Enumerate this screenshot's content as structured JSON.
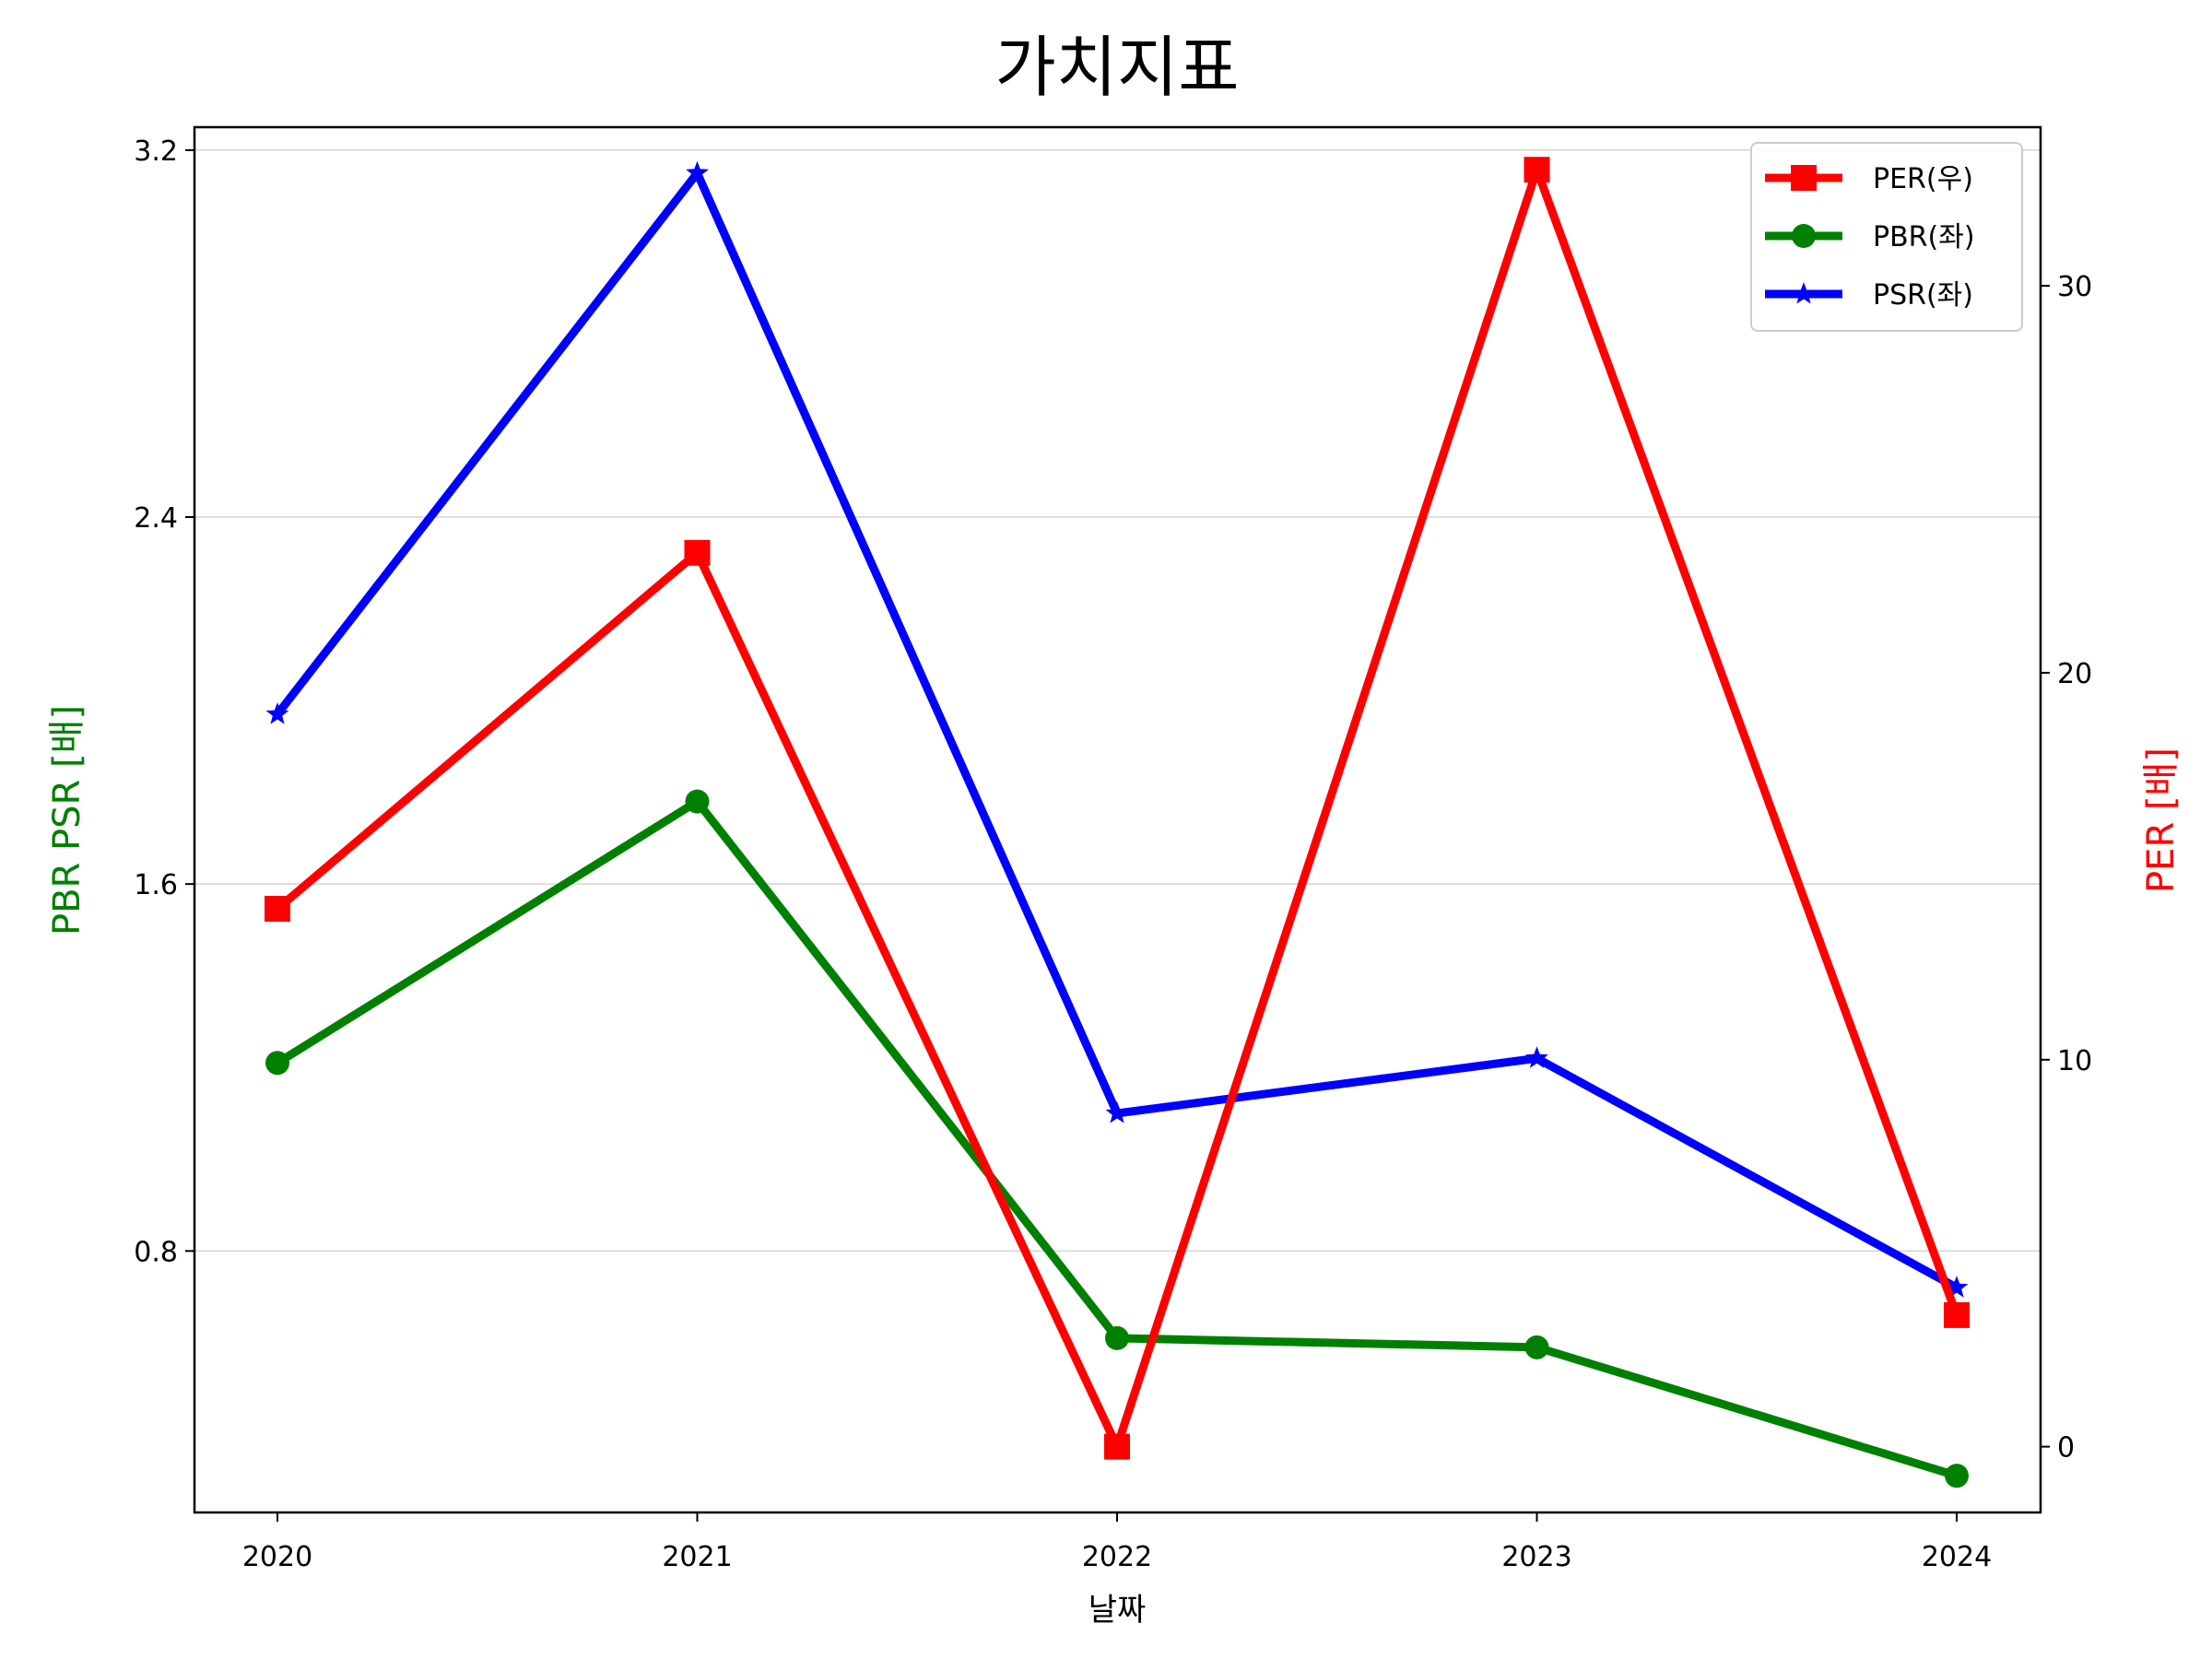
{
  "chart_data": {
    "type": "line",
    "title": "가치지표",
    "xlabel": "날짜",
    "ylabel_left": "PBR PSR [배]",
    "ylabel_right": "PER [배]",
    "ylabel_left_color": "#008000",
    "ylabel_right_color": "#ff0000",
    "x": [
      "2020",
      "2021",
      "2022",
      "2023",
      "2024"
    ],
    "y_left": {
      "ticks": [
        "0.8",
        "1.6",
        "2.4",
        "3.2"
      ],
      "lim": [
        0.23,
        3.25
      ]
    },
    "y_right": {
      "ticks": [
        "0",
        "10",
        "20",
        "30"
      ],
      "lim": [
        -1.7,
        34.1
      ]
    },
    "grid": "horizontal-left",
    "legend_position": "upper-right",
    "series": [
      {
        "name": "PER(우)",
        "axis": "right",
        "color": "#ff0000",
        "marker": "square",
        "values": [
          13.9,
          23.1,
          0.0,
          33.0,
          3.4
        ]
      },
      {
        "name": "PBR(좌)",
        "axis": "left",
        "color": "#008000",
        "marker": "circle",
        "values": [
          1.21,
          1.78,
          0.61,
          0.59,
          0.31
        ]
      },
      {
        "name": "PSR(좌)",
        "axis": "left",
        "color": "#0000ff",
        "marker": "star",
        "values": [
          1.97,
          3.15,
          1.1,
          1.22,
          0.72
        ]
      }
    ]
  }
}
